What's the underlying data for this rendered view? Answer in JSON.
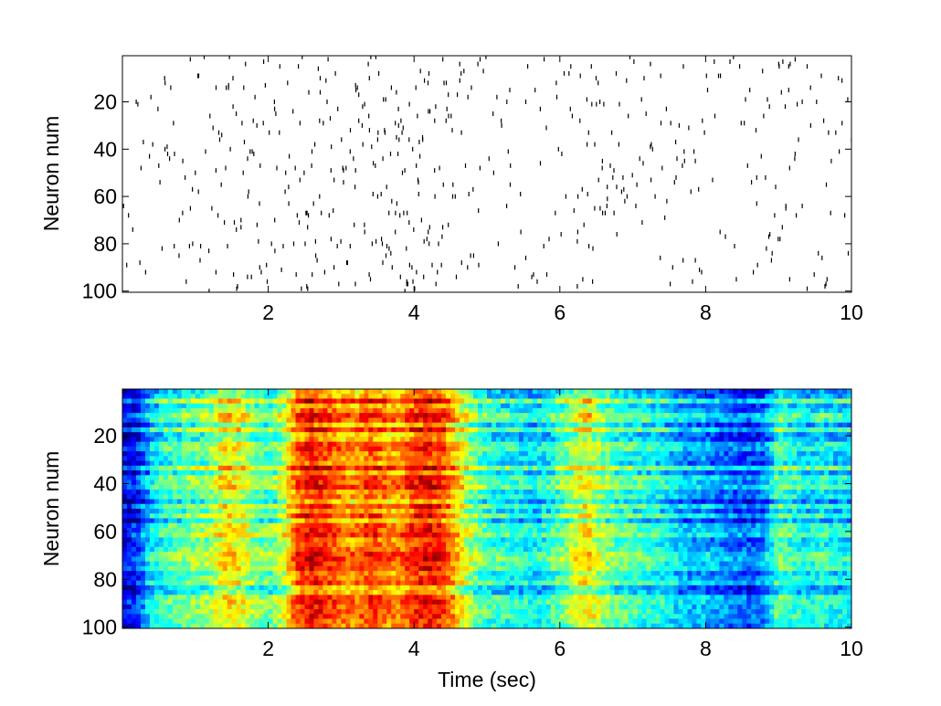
{
  "chart_data": [
    {
      "type": "scatter",
      "panel": "top",
      "description_type": "spike-raster",
      "title": "",
      "xlabel": "",
      "ylabel": "Neuron num",
      "xlim": [
        0,
        10
      ],
      "ylim": [
        100,
        1
      ],
      "y_reversed": true,
      "x_ticks": [
        2,
        4,
        6,
        8,
        10
      ],
      "y_ticks": [
        20,
        40,
        60,
        80,
        100
      ],
      "grid": false,
      "legend": "none",
      "mark_color": "#000000",
      "activity_profile": {
        "x": [
          0.0,
          0.5,
          1.0,
          1.5,
          2.0,
          2.5,
          3.0,
          3.5,
          4.0,
          4.5,
          5.0,
          5.5,
          6.0,
          6.5,
          7.0,
          7.5,
          8.0,
          8.5,
          9.0,
          9.5,
          10.0
        ],
        "relative_density": [
          0.15,
          0.35,
          0.45,
          0.55,
          0.45,
          0.75,
          0.75,
          0.7,
          0.85,
          0.6,
          0.35,
          0.3,
          0.35,
          0.65,
          0.3,
          0.4,
          0.3,
          0.25,
          0.55,
          0.35,
          0.35
        ]
      }
    },
    {
      "type": "heatmap",
      "panel": "bottom",
      "title": "",
      "xlabel": "Time (sec)",
      "ylabel": "Neuron num",
      "xlim": [
        0,
        10
      ],
      "ylim": [
        100,
        1
      ],
      "y_reversed": true,
      "x_ticks": [
        2,
        4,
        6,
        8,
        10
      ],
      "y_ticks": [
        20,
        40,
        60,
        80,
        100
      ],
      "colormap": "jet",
      "colorbar": false,
      "mean_activity": {
        "x": [
          0.0,
          0.2,
          0.4,
          0.6,
          0.8,
          1.0,
          1.2,
          1.4,
          1.6,
          1.8,
          2.0,
          2.2,
          2.4,
          2.6,
          2.8,
          3.0,
          3.2,
          3.4,
          3.6,
          3.8,
          4.0,
          4.2,
          4.4,
          4.6,
          4.8,
          5.0,
          5.2,
          5.4,
          5.6,
          5.8,
          6.0,
          6.2,
          6.4,
          6.6,
          6.8,
          7.0,
          7.2,
          7.4,
          7.6,
          7.8,
          8.0,
          8.2,
          8.4,
          8.6,
          8.8,
          9.0,
          9.2,
          9.4,
          9.6,
          9.8,
          10.0
        ],
        "level": [
          0.1,
          0.15,
          0.35,
          0.42,
          0.45,
          0.48,
          0.5,
          0.62,
          0.6,
          0.5,
          0.45,
          0.55,
          0.78,
          0.85,
          0.8,
          0.75,
          0.72,
          0.8,
          0.75,
          0.72,
          0.82,
          0.85,
          0.8,
          0.65,
          0.5,
          0.42,
          0.4,
          0.38,
          0.35,
          0.38,
          0.45,
          0.55,
          0.62,
          0.5,
          0.45,
          0.42,
          0.4,
          0.38,
          0.32,
          0.28,
          0.3,
          0.25,
          0.22,
          0.2,
          0.25,
          0.45,
          0.4,
          0.35,
          0.4,
          0.35,
          0.35
        ]
      }
    }
  ]
}
